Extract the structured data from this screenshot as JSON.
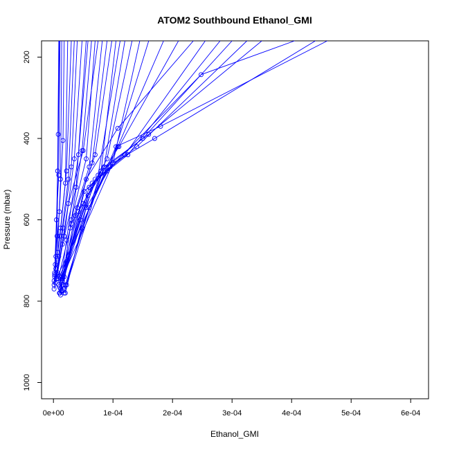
{
  "chart_data": {
    "type": "line",
    "title": "ATOM2 Southbound Ethanol_GMI",
    "xlabel": "Ethanol_GMI",
    "ylabel": "Pressure (mbar)",
    "xlim": [
      -2e-05,
      0.00063
    ],
    "ylim": [
      1040,
      160
    ],
    "y_axis_inverted": true,
    "xticks": [
      0,
      0.0001,
      0.0002,
      0.0003,
      0.0004,
      0.0005,
      0.0006
    ],
    "xtick_labels": [
      "0e+00",
      "1e-04",
      "2e-04",
      "3e-04",
      "4e-04",
      "5e-04",
      "6e-04"
    ],
    "yticks": [
      200,
      400,
      600,
      800,
      1000
    ],
    "ytick_labels": [
      "200",
      "400",
      "600",
      "800",
      "1000"
    ],
    "grid": false,
    "legend": "none",
    "series_color": "#0000ff",
    "series": [
      {
        "x": [
          2e-06,
          6e-06,
          8e-06,
          1e-05
        ],
        "y": [
          740,
          640,
          390,
          160
        ]
      },
      {
        "x": [
          1e-06,
          4e-06,
          7e-06,
          9e-06
        ],
        "y": [
          760,
          690,
          480,
          160
        ]
      },
      {
        "x": [
          2e-06,
          5e-06,
          9e-06,
          1.1e-05
        ],
        "y": [
          730,
          600,
          490,
          160
        ]
      },
      {
        "x": [
          1e-06,
          7e-06,
          1.2e-05,
          1.4e-05
        ],
        "y": [
          750,
          680,
          500,
          160
        ]
      },
      {
        "x": [
          3e-06,
          1e-05,
          1.6e-05,
          1.8e-05
        ],
        "y": [
          710,
          580,
          405,
          160
        ]
      },
      {
        "x": [
          2e-06,
          1.1e-05,
          2e-05,
          2.4e-05
        ],
        "y": [
          735,
          640,
          510,
          160
        ]
      },
      {
        "x": [
          4e-06,
          1.2e-05,
          2.2e-05,
          3e-05
        ],
        "y": [
          720,
          620,
          480,
          160
        ]
      },
      {
        "x": [
          1e-06,
          9e-06,
          2.5e-05,
          3.5e-05
        ],
        "y": [
          770,
          690,
          500,
          160
        ]
      },
      {
        "x": [
          5e-06,
          1.6e-05,
          3e-05,
          4e-05
        ],
        "y": [
          745,
          620,
          470,
          160
        ]
      },
      {
        "x": [
          7e-06,
          1.8e-05,
          3.5e-05,
          4.8e-05
        ],
        "y": [
          730,
          640,
          450,
          160
        ]
      },
      {
        "x": [
          3e-06,
          1.5e-05,
          3.8e-05,
          5.5e-05
        ],
        "y": [
          755,
          660,
          520,
          160
        ]
      },
      {
        "x": [
          1e-05,
          2.2e-05,
          4.2e-05,
          5.8e-05
        ],
        "y": [
          780,
          650,
          440,
          160
        ]
      },
      {
        "x": [
          1.3e-05,
          2.8e-05,
          4.8e-05,
          6.4e-05
        ],
        "y": [
          775,
          620,
          430,
          160
        ]
      },
      {
        "x": [
          1.2e-05,
          3e-05,
          5.5e-05,
          7e-05
        ],
        "y": [
          785,
          600,
          450,
          160
        ]
      },
      {
        "x": [
          6e-06,
          2.5e-05,
          5e-05,
          7.5e-05
        ],
        "y": [
          740,
          560,
          430,
          160
        ]
      },
      {
        "x": [
          8e-06,
          3e-05,
          6e-05,
          8.2e-05
        ],
        "y": [
          745,
          610,
          470,
          160
        ]
      },
      {
        "x": [
          1.1e-05,
          3.6e-05,
          6.5e-05,
          9e-05
        ],
        "y": [
          780,
          590,
          460,
          160
        ]
      },
      {
        "x": [
          1.5e-05,
          4e-05,
          7e-05,
          9.8e-05
        ],
        "y": [
          775,
          570,
          440,
          160
        ]
      },
      {
        "x": [
          9e-06,
          4.2e-05,
          8e-05,
          0.000105
        ],
        "y": [
          760,
          580,
          480,
          160
        ]
      },
      {
        "x": [
          1.2e-05,
          4.5e-05,
          7.5e-05,
          0.000112
        ],
        "y": [
          770,
          600,
          490,
          160
        ]
      },
      {
        "x": [
          1.8e-05,
          4.8e-05,
          8.5e-05,
          0.00012
        ],
        "y": [
          780,
          620,
          470,
          160
        ]
      },
      {
        "x": [
          1e-05,
          5e-05,
          9e-05,
          0.000132
        ],
        "y": [
          765,
          560,
          450,
          160
        ]
      },
      {
        "x": [
          2e-05,
          5.5e-05,
          0.0001,
          0.000145
        ],
        "y": [
          780,
          570,
          460,
          160
        ]
      },
      {
        "x": [
          1.5e-05,
          5.2e-05,
          9.5e-05,
          0.00016
        ],
        "y": [
          750,
          530,
          470,
          160
        ]
      },
      {
        "x": [
          1.8e-05,
          6e-05,
          0.000108,
          0.000185
        ],
        "y": [
          770,
          570,
          420,
          160
        ]
      },
      {
        "x": [
          1.4e-05,
          5.8e-05,
          0.00011,
          0.00021
        ],
        "y": [
          740,
          540,
          420,
          160
        ]
      },
      {
        "x": [
          1.6e-05,
          5.5e-05,
          0.000108,
          0.000235
        ],
        "y": [
          760,
          500,
          375,
          160
        ]
      },
      {
        "x": [
          1.2e-05,
          6e-05,
          0.00012,
          0.000255
        ],
        "y": [
          750,
          520,
          440,
          160
        ]
      },
      {
        "x": [
          1.5e-05,
          6.5e-05,
          0.000125,
          0.00028
        ],
        "y": [
          745,
          510,
          440,
          160
        ]
      },
      {
        "x": [
          2e-05,
          8e-05,
          0.00015,
          0.0003
        ],
        "y": [
          760,
          480,
          400,
          160
        ]
      },
      {
        "x": [
          1.8e-05,
          7e-05,
          0.00014,
          0.000325
        ],
        "y": [
          740,
          500,
          420,
          160
        ]
      },
      {
        "x": [
          2.2e-05,
          8.5e-05,
          0.00016,
          0.00035
        ],
        "y": [
          760,
          470,
          390,
          160
        ]
      },
      {
        "x": [
          8e-06,
          9e-05,
          0.000248,
          0.000405
        ],
        "y": [
          735,
          480,
          243,
          160
        ]
      },
      {
        "x": [
          1.4e-05,
          0.0001,
          0.00017,
          0.00044
        ],
        "y": [
          745,
          460,
          400,
          160
        ]
      },
      {
        "x": [
          1e-05,
          0.000105,
          0.00018,
          0.00046
        ],
        "y": [
          740,
          420,
          370,
          160
        ]
      }
    ]
  }
}
